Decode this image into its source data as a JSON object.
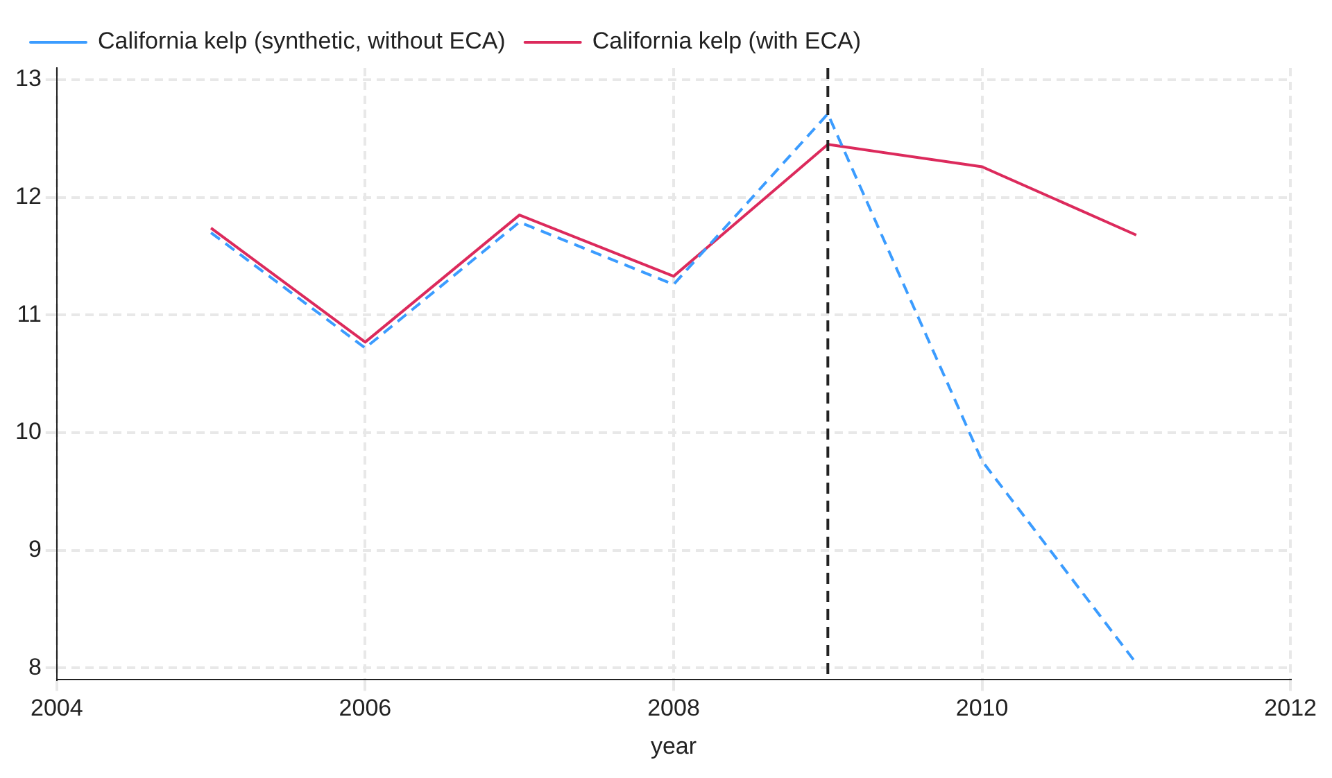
{
  "chart_data": {
    "type": "line",
    "xlabel": "year",
    "x": [
      2005,
      2006,
      2007,
      2008,
      2009,
      2010,
      2011
    ],
    "series": [
      {
        "name": "California kelp (synthetic, without ECA)",
        "color": "#3b9cff",
        "line_style": "dashed",
        "values": [
          11.7,
          10.72,
          11.79,
          11.26,
          12.71,
          9.76,
          8.04
        ]
      },
      {
        "name": "California kelp (with ECA)",
        "color": "#dc2a5c",
        "line_style": "solid",
        "values": [
          11.74,
          10.77,
          11.85,
          11.33,
          12.45,
          12.26,
          11.68
        ]
      }
    ],
    "xlim": [
      2004,
      2012
    ],
    "xticks": [
      2004,
      2006,
      2008,
      2010,
      2012
    ],
    "ylim": [
      7.9,
      13.1
    ],
    "yticks": [
      8,
      9,
      10,
      11,
      12,
      13
    ],
    "ref_lines": [
      {
        "axis": "x",
        "value": 2009,
        "color": "#222222",
        "line_style": "dashed"
      }
    ],
    "grid": true,
    "legend": "top",
    "marker": "none"
  }
}
